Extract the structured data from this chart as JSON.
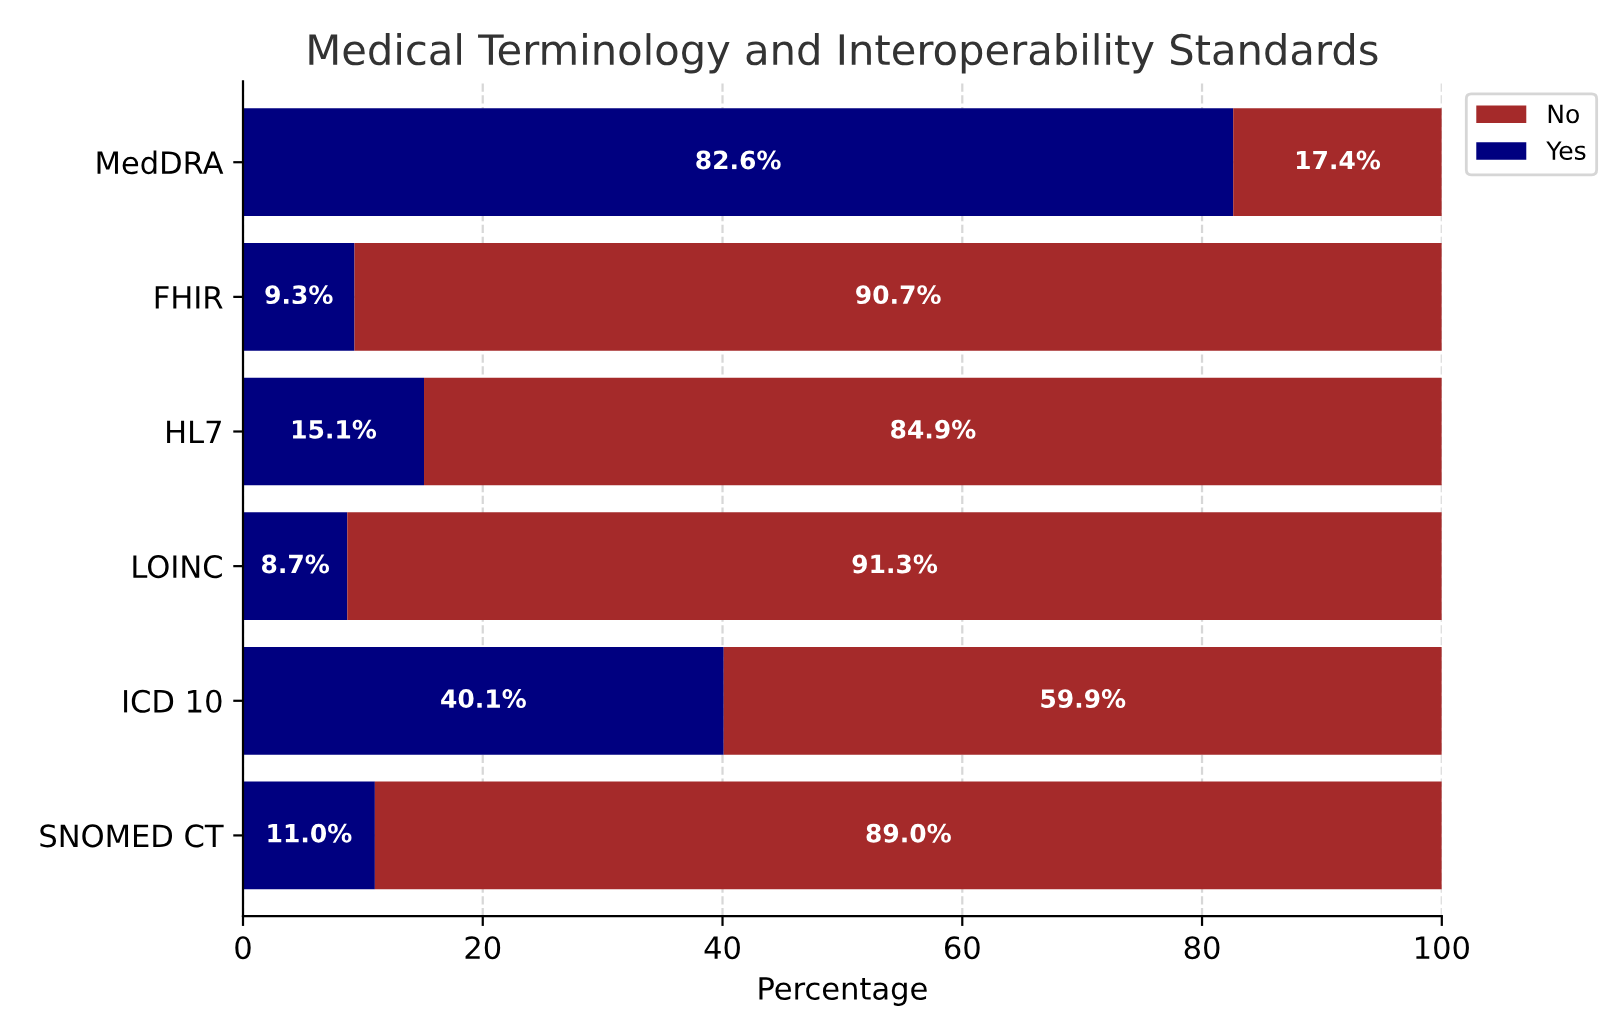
{
  "chart_data": {
    "type": "bar",
    "title": "Medical Terminology and Interoperability Standards",
    "xlabel": "Percentage",
    "orientation": "horizontal",
    "stacked": true,
    "categories": [
      "MedDRA",
      "FHIR",
      "HL7",
      "LOINC",
      "ICD 10",
      "SNOMED CT"
    ],
    "series": [
      {
        "name": "Yes",
        "color": "#000080",
        "values": [
          82.6,
          9.3,
          15.1,
          8.7,
          40.1,
          11.0
        ],
        "value_labels": [
          "82.6%",
          "9.3%",
          "15.1%",
          "8.7%",
          "40.1%",
          "11.0%"
        ]
      },
      {
        "name": "No",
        "color": "#a52a2a",
        "values": [
          17.4,
          90.7,
          84.9,
          91.3,
          59.9,
          89.0
        ],
        "value_labels": [
          "17.4%",
          "90.7%",
          "84.9%",
          "91.3%",
          "59.9%",
          "89.0%"
        ]
      }
    ],
    "xlim": [
      0,
      100
    ],
    "xticks": [
      0,
      20,
      40,
      60,
      80,
      100
    ],
    "grid": true,
    "legend": "top right"
  }
}
